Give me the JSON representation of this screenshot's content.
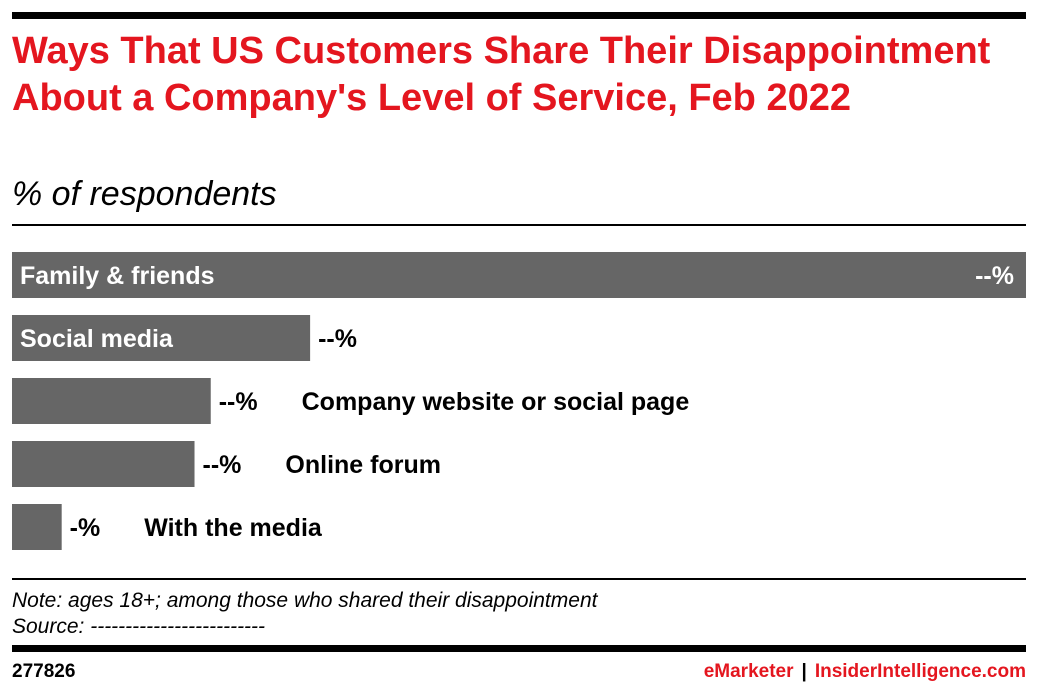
{
  "header": {
    "title": "Ways That US Customers Share Their Disappointment About a Company's Level of Service, Feb 2022",
    "subtitle": "% of respondents"
  },
  "chart_data": {
    "type": "bar",
    "orientation": "horizontal",
    "categories": [
      "Family & friends",
      "Social media",
      "Company website or social page",
      "Online forum",
      "With the media"
    ],
    "series": [
      {
        "values": [
          100,
          29.4,
          19.6,
          18,
          4.9
        ],
        "labels": [
          "--%",
          "--%",
          "--%",
          "--%",
          "-%"
        ]
      }
    ],
    "xlim": [
      0,
      100
    ],
    "grid": false,
    "legend": "none",
    "bar_color": "#666666"
  },
  "footer": {
    "note": "Note: ages 18+; among those who shared their disappointment",
    "source": "Source: -------------------------",
    "chart_id": "277826",
    "brand_emarketer": "eMarketer",
    "brand_separator": "|",
    "brand_insider": "InsiderIntelligence.com"
  },
  "colors": {
    "title": "#e4161f",
    "bar": "#666666",
    "brand": "#e4161f"
  }
}
